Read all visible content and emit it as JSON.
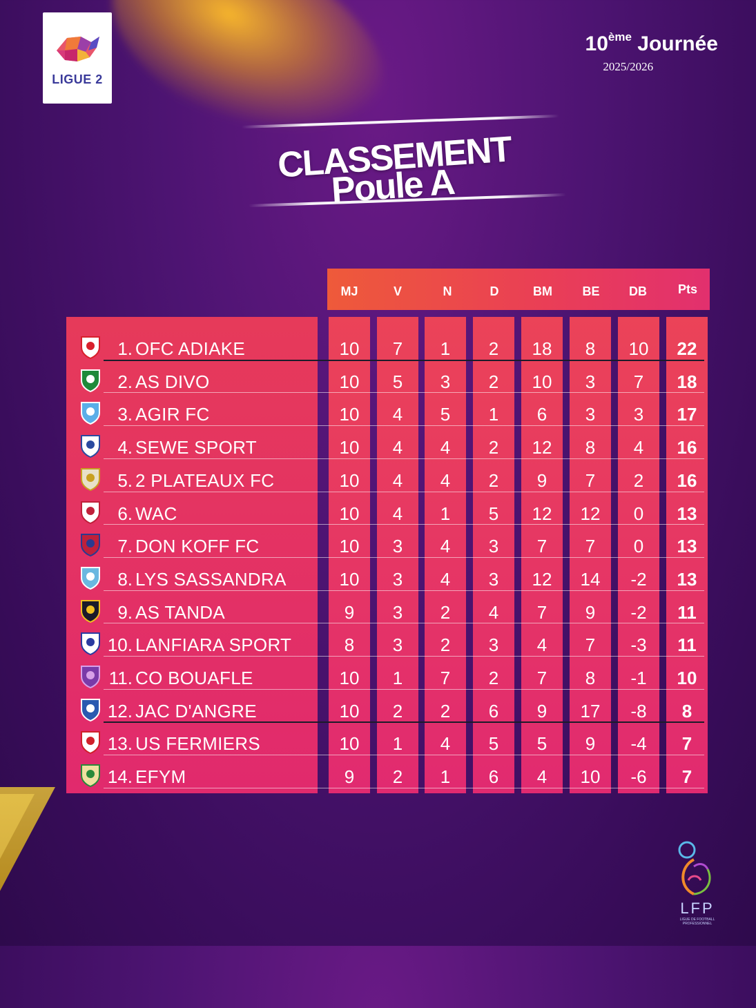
{
  "branding": {
    "league_logo_label": "LIGUE 2",
    "footer_logo_label": "LFP",
    "footer_logo_subtitle": "LIGUE DE FOOTBALL PROFESSIONNEL"
  },
  "round": {
    "number": "10",
    "suffix": "ème",
    "label": "Journée",
    "season": "2025/2026"
  },
  "title": {
    "line1": "CLASSEMENT",
    "line2": "Poule A"
  },
  "columns": [
    "MJ",
    "V",
    "N",
    "D",
    "BM",
    "BE",
    "DB",
    "Pts"
  ],
  "colors": {
    "background": "#4d1472",
    "header_gradient_start": "#ee5a3a",
    "header_gradient_end": "#e2306e",
    "panel": "#e12a6d",
    "accent_gold": "#e4c049"
  },
  "standings": [
    {
      "rank": "1.",
      "team": "OFC ADIAKE",
      "stats": [
        "10",
        "7",
        "1",
        "2",
        "18",
        "8",
        "10"
      ],
      "pts": "22"
    },
    {
      "rank": "2.",
      "team": "AS DIVO",
      "stats": [
        "10",
        "5",
        "3",
        "2",
        "10",
        "3",
        "7"
      ],
      "pts": "18"
    },
    {
      "rank": "3.",
      "team": "AGIR FC",
      "stats": [
        "10",
        "4",
        "5",
        "1",
        "6",
        "3",
        "3"
      ],
      "pts": "17"
    },
    {
      "rank": "4.",
      "team": "SEWE SPORT",
      "stats": [
        "10",
        "4",
        "4",
        "2",
        "12",
        "8",
        "4"
      ],
      "pts": "16"
    },
    {
      "rank": "5.",
      "team": "2 PLATEAUX FC",
      "stats": [
        "10",
        "4",
        "4",
        "2",
        "9",
        "7",
        "2"
      ],
      "pts": "16"
    },
    {
      "rank": "6.",
      "team": "WAC",
      "stats": [
        "10",
        "4",
        "1",
        "5",
        "12",
        "12",
        "0"
      ],
      "pts": "13"
    },
    {
      "rank": "7.",
      "team": "DON KOFF FC",
      "stats": [
        "10",
        "3",
        "4",
        "3",
        "7",
        "7",
        "0"
      ],
      "pts": "13"
    },
    {
      "rank": "8.",
      "team": "LYS SASSANDRA",
      "stats": [
        "10",
        "3",
        "4",
        "3",
        "12",
        "14",
        "-2"
      ],
      "pts": "13"
    },
    {
      "rank": "9.",
      "team": "AS TANDA",
      "stats": [
        "9",
        "3",
        "2",
        "4",
        "7",
        "9",
        "-2"
      ],
      "pts": "11"
    },
    {
      "rank": "10.",
      "team": "LANFIARA SPORT",
      "stats": [
        "8",
        "3",
        "2",
        "3",
        "4",
        "7",
        "-3"
      ],
      "pts": "11"
    },
    {
      "rank": "11.",
      "team": "CO BOUAFLE",
      "stats": [
        "10",
        "1",
        "7",
        "2",
        "7",
        "8",
        "-1"
      ],
      "pts": "10"
    },
    {
      "rank": "12.",
      "team": "JAC D'ANGRE",
      "stats": [
        "10",
        "2",
        "2",
        "6",
        "9",
        "17",
        "-8"
      ],
      "pts": "8"
    },
    {
      "rank": "13.",
      "team": "US FERMIERS",
      "stats": [
        "10",
        "1",
        "4",
        "5",
        "5",
        "9",
        "-4"
      ],
      "pts": "7"
    },
    {
      "rank": "14.",
      "team": "EFYM",
      "stats": [
        "9",
        "2",
        "1",
        "6",
        "4",
        "10",
        "-6"
      ],
      "pts": "7"
    }
  ],
  "crest_icons": [
    "ofc-adiake-crest-icon",
    "as-divo-crest-icon",
    "agir-fc-crest-icon",
    "sewe-sport-crest-icon",
    "2-plateaux-fc-crest-icon",
    "wac-crest-icon",
    "don-koff-fc-crest-icon",
    "lys-sassandra-crest-icon",
    "as-tanda-crest-icon",
    "lanfiara-sport-crest-icon",
    "co-bouafle-crest-icon",
    "jac-dangre-crest-icon",
    "us-fermiers-crest-icon",
    "efym-crest-icon"
  ]
}
